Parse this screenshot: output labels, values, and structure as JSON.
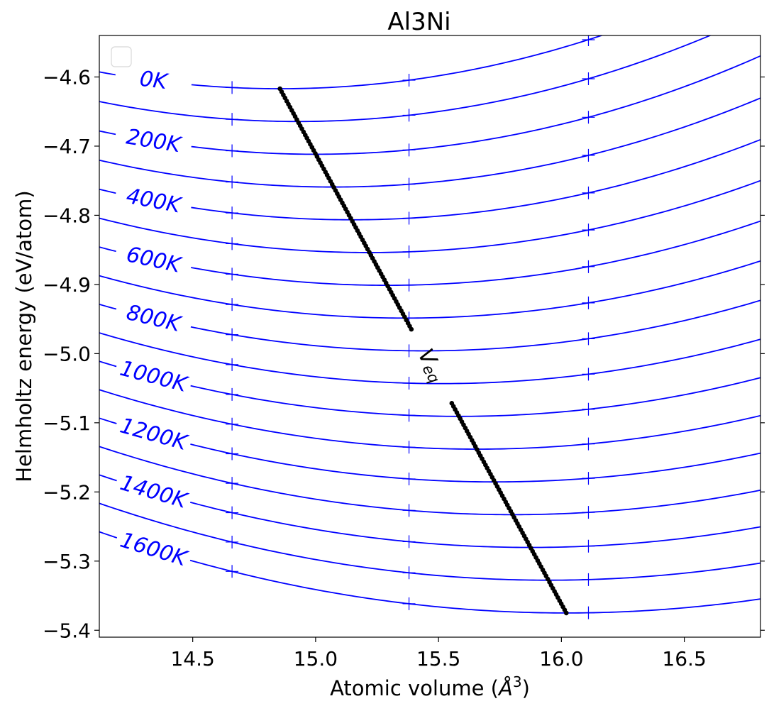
{
  "chart_data": {
    "type": "line",
    "title": "Al3Ni",
    "xlabel": "Atomic volume (",
    "xlabel_symbol": "Å",
    "xlabel_sup": "3",
    "xlabel_close": ")",
    "ylabel": "Helmholtz energy (eV/atom)",
    "xlim": [
      14.12,
      16.81
    ],
    "ylim": [
      -5.41,
      -4.54
    ],
    "xticks": [
      14.5,
      15.0,
      15.5,
      16.0,
      16.5
    ],
    "xtick_labels": [
      "14.5",
      "15.0",
      "15.5",
      "16.0",
      "16.5"
    ],
    "yticks": [
      -4.6,
      -4.7,
      -4.8,
      -4.9,
      -5.0,
      -5.1,
      -5.2,
      -5.3,
      -5.4
    ],
    "ytick_labels": [
      "−4.6",
      "−4.7",
      "−4.8",
      "−4.9",
      "−5.0",
      "−5.1",
      "−5.2",
      "−5.3",
      "−5.4"
    ],
    "grid": false,
    "legend": "top-left (empty)",
    "curve_color": "#0000ff",
    "veq_color": "#000000",
    "marker_volumes": [
      14.66,
      15.38,
      16.11
    ],
    "temperatures": [
      0,
      100,
      200,
      300,
      400,
      500,
      600,
      700,
      800,
      900,
      1000,
      1100,
      1200,
      1300,
      1400,
      1500,
      1600
    ],
    "temp_labels": [
      {
        "temp": 0,
        "text": "0K"
      },
      {
        "temp": 200,
        "text": "200K"
      },
      {
        "temp": 400,
        "text": "400K"
      },
      {
        "temp": 600,
        "text": "600K"
      },
      {
        "temp": 800,
        "text": "800K"
      },
      {
        "temp": 1000,
        "text": "1000K"
      },
      {
        "temp": 1200,
        "text": "1200K"
      },
      {
        "temp": 1400,
        "text": "1400K"
      },
      {
        "temp": 1600,
        "text": "1600K"
      }
    ],
    "veq_label": "V",
    "veq_sub": "eq",
    "v0_start": 14.855,
    "v0_end": 16.02,
    "fmin_start": -4.617,
    "fmin_end": -5.375,
    "curvature_start": 0.045,
    "curvature_end": 0.0325
  }
}
